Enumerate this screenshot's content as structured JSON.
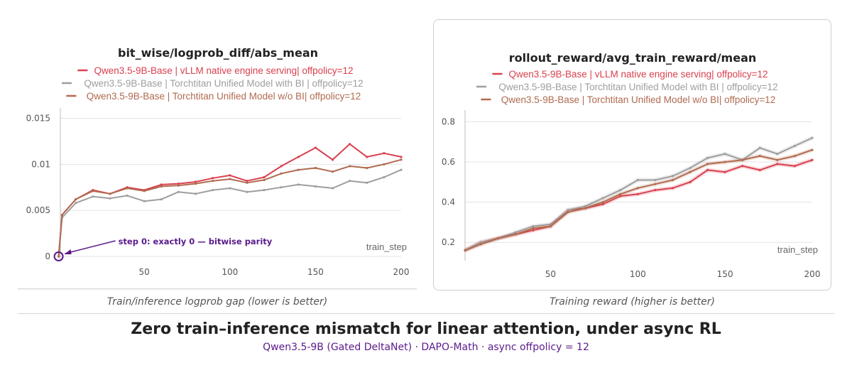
{
  "colors": {
    "vllm": "#d9404e",
    "unified_bi": "#9e9e9e",
    "unified_nobi": "#b06a4f",
    "annotation": "#5b1a8c",
    "grid": "#e3e3e3",
    "axis_text": "#555555"
  },
  "footer": {
    "title": "Zero train–inference mismatch for linear attention, under async RL",
    "subtitle": "Qwen3.5-9B (Gated DeltaNet)  ·  DAPO-Math  ·  async offpolicy = 12"
  },
  "chart_data": [
    {
      "type": "line",
      "title": "bit_wise/logprob_diff/abs_mean",
      "caption": "Train/inference logprob gap (lower is better)",
      "xlabel": "train_step",
      "ylabel": "",
      "xlim": [
        1,
        200
      ],
      "ylim": [
        0,
        0.0155
      ],
      "x_ticks": [
        50,
        100,
        150,
        200
      ],
      "y_ticks": [
        0,
        0.005,
        0.01,
        0.015
      ],
      "y_tick_labels": [
        "0",
        "0.005",
        "0.01",
        "0.015"
      ],
      "grid": "horizontal",
      "legend": "top-center",
      "annotation": {
        "text": "step 0: exactly 0 — bitwise parity",
        "x": 0,
        "y": 0
      },
      "x": [
        0,
        2,
        10,
        20,
        30,
        40,
        50,
        60,
        70,
        80,
        90,
        100,
        110,
        120,
        130,
        140,
        150,
        160,
        170,
        180,
        190,
        200
      ],
      "series": [
        {
          "name": "Qwen3.5-9B-Base | vLLM native engine serving| offpolicy=12",
          "color_key": "vllm",
          "values": [
            0,
            0.0045,
            0.0062,
            0.0072,
            0.0068,
            0.0075,
            0.0072,
            0.0078,
            0.0079,
            0.0081,
            0.0085,
            0.0088,
            0.0082,
            0.0086,
            0.0098,
            0.0108,
            0.0118,
            0.0105,
            0.0122,
            0.0108,
            0.0112,
            0.0108
          ]
        },
        {
          "name": "Qwen3.5-9B-Base | Torchtitan Unified Model with BI | offpolicy=12",
          "color_key": "unified_bi",
          "values": [
            0,
            0.0042,
            0.0058,
            0.0065,
            0.0063,
            0.0066,
            0.006,
            0.0062,
            0.007,
            0.0068,
            0.0072,
            0.0074,
            0.007,
            0.0072,
            0.0075,
            0.0078,
            0.0076,
            0.0074,
            0.0082,
            0.008,
            0.0086,
            0.0094
          ]
        },
        {
          "name": "Qwen3.5-9B-Base | Torchtitan Unified Model w/o BI| offpolicy=12",
          "color_key": "unified_nobi",
          "values": [
            0,
            0.0045,
            0.0062,
            0.0071,
            0.0068,
            0.0074,
            0.0071,
            0.0076,
            0.0077,
            0.0079,
            0.0082,
            0.0084,
            0.008,
            0.0083,
            0.009,
            0.0094,
            0.0096,
            0.0092,
            0.0098,
            0.0096,
            0.01,
            0.0105
          ]
        }
      ]
    },
    {
      "type": "line",
      "title": "rollout_reward/avg_train_reward/mean",
      "caption": "Training reward (higher is better)",
      "xlabel": "train_step",
      "ylabel": "",
      "xlim": [
        1,
        200
      ],
      "ylim": [
        0.13,
        0.83
      ],
      "x_ticks": [
        50,
        100,
        150,
        200
      ],
      "y_ticks": [
        0.2,
        0.4,
        0.6,
        0.8
      ],
      "y_tick_labels": [
        "0.2",
        "0.4",
        "0.6",
        "0.8"
      ],
      "grid": "horizontal",
      "legend": "top-center",
      "x": [
        1,
        10,
        20,
        30,
        40,
        50,
        60,
        70,
        80,
        90,
        100,
        110,
        120,
        130,
        140,
        150,
        160,
        170,
        180,
        190,
        200
      ],
      "series": [
        {
          "name": "Qwen3.5-9B-Base | vLLM native engine serving| offpolicy=12",
          "color_key": "vllm",
          "values": [
            0.16,
            0.2,
            0.22,
            0.24,
            0.26,
            0.28,
            0.36,
            0.37,
            0.39,
            0.43,
            0.44,
            0.46,
            0.47,
            0.5,
            0.56,
            0.55,
            0.58,
            0.56,
            0.59,
            0.58,
            0.61
          ]
        },
        {
          "name": "Qwen3.5-9B-Base | Torchtitan Unified Model with BI | offpolicy=12",
          "color_key": "unified_bi",
          "values": [
            0.16,
            0.2,
            0.22,
            0.25,
            0.28,
            0.29,
            0.36,
            0.38,
            0.42,
            0.46,
            0.51,
            0.51,
            0.53,
            0.57,
            0.62,
            0.64,
            0.61,
            0.67,
            0.64,
            0.68,
            0.72
          ]
        },
        {
          "name": "Qwen3.5-9B-Base | Torchtitan Unified Model w/o BI| offpolicy=12",
          "color_key": "unified_nobi",
          "values": [
            0.16,
            0.19,
            0.22,
            0.24,
            0.27,
            0.28,
            0.35,
            0.37,
            0.4,
            0.44,
            0.47,
            0.49,
            0.51,
            0.55,
            0.59,
            0.6,
            0.61,
            0.63,
            0.61,
            0.63,
            0.66
          ]
        }
      ]
    }
  ]
}
